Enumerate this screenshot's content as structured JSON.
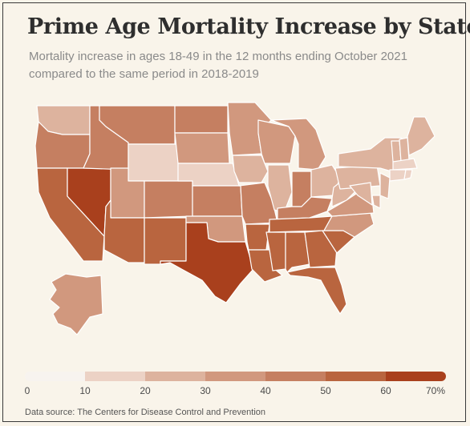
{
  "title": "Prime Age Mortality Increase by State",
  "subtitle": "Mortality increase in ages 18-49 in the 12 months ending October 2021 compared to the same period in 2018-2019",
  "legend": {
    "ticks": [
      "0",
      "10",
      "20",
      "30",
      "40",
      "50",
      "60",
      "70%"
    ],
    "colors": [
      "#f7f3ef",
      "#ecd2c5",
      "#ddb39e",
      "#d1987e",
      "#c57f61",
      "#b9653f",
      "#a9401d"
    ]
  },
  "source": "Data source: The Centers for Disease Control and Prevention",
  "chart_data": {
    "type": "choropleth",
    "value_bins": [
      {
        "range": [
          0,
          10
        ],
        "color": "#f7f3ef"
      },
      {
        "range": [
          10,
          20
        ],
        "color": "#ecd2c5"
      },
      {
        "range": [
          20,
          30
        ],
        "color": "#ddb39e"
      },
      {
        "range": [
          30,
          40
        ],
        "color": "#d1987e"
      },
      {
        "range": [
          40,
          50
        ],
        "color": "#c57f61"
      },
      {
        "range": [
          50,
          60
        ],
        "color": "#b9653f"
      },
      {
        "range": [
          60,
          70
        ],
        "color": "#a9401d"
      }
    ],
    "states": {
      "WA": "20-30",
      "OR": "40-50",
      "CA": "50-60",
      "NV": "60-70",
      "ID": "40-50",
      "MT": "40-50",
      "WY": "10-20",
      "UT": "30-40",
      "AZ": "50-60",
      "CO": "40-50",
      "NM": "50-60",
      "ND": "40-50",
      "SD": "30-40",
      "NE": "10-20",
      "KS": "40-50",
      "OK": "30-40",
      "TX": "60-70",
      "MN": "30-40",
      "IA": "20-30",
      "MO": "40-50",
      "AR": "50-60",
      "LA": "50-60",
      "WI": "30-40",
      "IL": "20-30",
      "MI": "30-40",
      "IN": "40-50",
      "OH": "20-30",
      "KY": "40-50",
      "TN": "50-60",
      "MS": "50-60",
      "AL": "50-60",
      "GA": "50-60",
      "FL": "50-60",
      "SC": "50-60",
      "NC": "30-40",
      "VA": "30-40",
      "WV": "20-30",
      "PA": "20-30",
      "NY": "20-30",
      "VT": "20-30",
      "NH": "20-30",
      "ME": "20-30",
      "MA": "10-20",
      "CT": "10-20",
      "RI": "10-20",
      "NJ": "20-30",
      "DE": "20-30",
      "MD": "20-30",
      "AK": "30-40"
    }
  }
}
